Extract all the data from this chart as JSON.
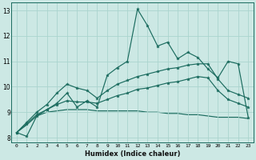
{
  "xlabel": "Humidex (Indice chaleur)",
  "ylabel": "",
  "xlim": [
    -0.5,
    23.5
  ],
  "ylim": [
    7.8,
    13.3
  ],
  "bg_color": "#cce8e4",
  "grid_color": "#aad4ce",
  "line_color": "#1a6b5e",
  "xticks": [
    0,
    1,
    2,
    3,
    4,
    5,
    6,
    7,
    8,
    9,
    10,
    11,
    12,
    13,
    14,
    15,
    16,
    17,
    18,
    19,
    20,
    21,
    22,
    23
  ],
  "yticks": [
    8,
    9,
    10,
    11,
    12,
    13
  ],
  "curve_actual": [
    8.2,
    8.05,
    8.85,
    9.1,
    9.35,
    9.75,
    9.2,
    9.45,
    9.2,
    10.45,
    10.75,
    11.0,
    13.05,
    12.4,
    11.6,
    11.75,
    11.1,
    11.35,
    11.15,
    10.7,
    10.35,
    11.0,
    10.9,
    8.8
  ],
  "curve_max": [
    8.2,
    8.6,
    9.0,
    9.3,
    9.75,
    10.1,
    9.95,
    9.85,
    9.55,
    9.85,
    10.1,
    10.25,
    10.4,
    10.5,
    10.6,
    10.7,
    10.75,
    10.85,
    10.9,
    10.9,
    10.3,
    9.85,
    9.7,
    9.55
  ],
  "curve_mean": [
    8.2,
    8.55,
    8.9,
    9.1,
    9.3,
    9.45,
    9.4,
    9.4,
    9.35,
    9.5,
    9.65,
    9.75,
    9.9,
    9.95,
    10.05,
    10.15,
    10.2,
    10.3,
    10.4,
    10.35,
    9.85,
    9.5,
    9.35,
    9.2
  ],
  "curve_min": [
    8.2,
    8.5,
    8.85,
    9.0,
    9.05,
    9.1,
    9.1,
    9.1,
    9.05,
    9.05,
    9.05,
    9.05,
    9.05,
    9.0,
    9.0,
    8.95,
    8.95,
    8.9,
    8.9,
    8.85,
    8.8,
    8.8,
    8.8,
    8.75
  ]
}
